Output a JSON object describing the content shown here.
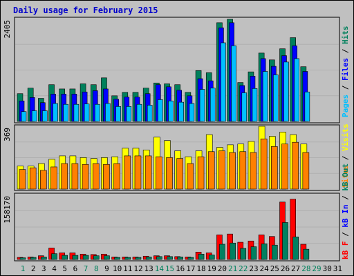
{
  "title": "Daily usage for February 2015",
  "colors": {
    "hits": "#00805c",
    "files": "#0000ff",
    "pages": "#00c0ff",
    "visits": "#ffff00",
    "sites": "#ff8000",
    "kb_out": "#008060",
    "kb_in": "#0000ff",
    "kb_f": "#ff0000"
  },
  "chart_data": [
    {
      "type": "bar",
      "ymax_label": "2405",
      "categories": [
        "1",
        "2",
        "3",
        "4",
        "5",
        "6",
        "7",
        "8",
        "9",
        "10",
        "11",
        "12",
        "13",
        "14",
        "15",
        "16",
        "17",
        "18",
        "19",
        "20",
        "21",
        "22",
        "23",
        "24",
        "25",
        "26",
        "27",
        "28",
        "29",
        "30",
        "31"
      ],
      "series": [
        {
          "name": "Hits",
          "values": [
            650,
            780,
            540,
            860,
            760,
            760,
            880,
            860,
            1020,
            600,
            680,
            680,
            780,
            900,
            880,
            860,
            680,
            1190,
            1140,
            2310,
            2390,
            910,
            1160,
            1600,
            1440,
            1700,
            1960,
            1280,
            0,
            0,
            0
          ]
        },
        {
          "name": "Files",
          "values": [
            480,
            560,
            440,
            640,
            640,
            640,
            690,
            720,
            760,
            520,
            570,
            570,
            650,
            860,
            810,
            730,
            600,
            1000,
            950,
            2190,
            2310,
            840,
            1060,
            1470,
            1290,
            1540,
            1770,
            1170,
            0,
            0,
            0
          ]
        },
        {
          "name": "Pages",
          "values": [
            230,
            250,
            250,
            420,
            400,
            400,
            410,
            400,
            420,
            350,
            350,
            400,
            380,
            510,
            480,
            450,
            420,
            750,
            780,
            1840,
            1770,
            670,
            770,
            1170,
            1090,
            1390,
            1470,
            690,
            0,
            0,
            0
          ]
        }
      ],
      "axis_legend": [
        "Pages",
        "Files",
        "Hits"
      ]
    },
    {
      "type": "bar",
      "ymax_label": "369",
      "categories": [
        "1",
        "2",
        "3",
        "4",
        "5",
        "6",
        "7",
        "8",
        "9",
        "10",
        "11",
        "12",
        "13",
        "14",
        "15",
        "16",
        "17",
        "18",
        "19",
        "20",
        "21",
        "22",
        "23",
        "24",
        "25",
        "26",
        "27",
        "28",
        "29",
        "30",
        "31"
      ],
      "series": [
        {
          "name": "Visits",
          "values": [
            135,
            135,
            150,
            175,
            195,
            195,
            185,
            180,
            185,
            190,
            240,
            240,
            230,
            305,
            285,
            225,
            190,
            225,
            320,
            245,
            260,
            265,
            280,
            369,
            310,
            335,
            320,
            265,
            0,
            0,
            0
          ]
        },
        {
          "name": "Sites",
          "values": [
            115,
            125,
            110,
            130,
            150,
            150,
            145,
            150,
            145,
            150,
            195,
            195,
            195,
            190,
            185,
            180,
            150,
            190,
            220,
            225,
            215,
            220,
            215,
            295,
            250,
            265,
            275,
            215,
            0,
            0,
            0
          ]
        }
      ],
      "axis_legend": [
        "Sites",
        "Visits"
      ]
    },
    {
      "type": "bar",
      "ymax_label": "158170",
      "categories": [
        "1",
        "2",
        "3",
        "4",
        "5",
        "6",
        "7",
        "8",
        "9",
        "10",
        "11",
        "12",
        "13",
        "14",
        "15",
        "16",
        "17",
        "18",
        "19",
        "20",
        "21",
        "22",
        "23",
        "24",
        "25",
        "26",
        "27",
        "28",
        "29",
        "30",
        "31"
      ],
      "series": [
        {
          "name": "kB F",
          "values": [
            5000,
            6000,
            9000,
            28000,
            16000,
            16000,
            13000,
            12000,
            13000,
            6000,
            6000,
            6000,
            8000,
            9000,
            9000,
            7000,
            6000,
            18000,
            16000,
            60000,
            62000,
            42000,
            45000,
            60000,
            56000,
            140000,
            147000,
            37000,
            0,
            0,
            0
          ]
        },
        {
          "name": "kB Out",
          "values": [
            4000,
            5000,
            6000,
            14000,
            10000,
            10000,
            10000,
            9000,
            9000,
            5000,
            5000,
            5000,
            6000,
            7000,
            7000,
            6000,
            5000,
            13000,
            11000,
            37000,
            40000,
            27000,
            31000,
            38000,
            35000,
            90000,
            55000,
            25000,
            0,
            0,
            0
          ]
        }
      ],
      "axis_legend": [
        "kB F",
        "kB In",
        "kB Out"
      ]
    }
  ],
  "weekend_days": [
    "1",
    "7",
    "8",
    "14",
    "15",
    "21",
    "22",
    "28",
    "29"
  ]
}
